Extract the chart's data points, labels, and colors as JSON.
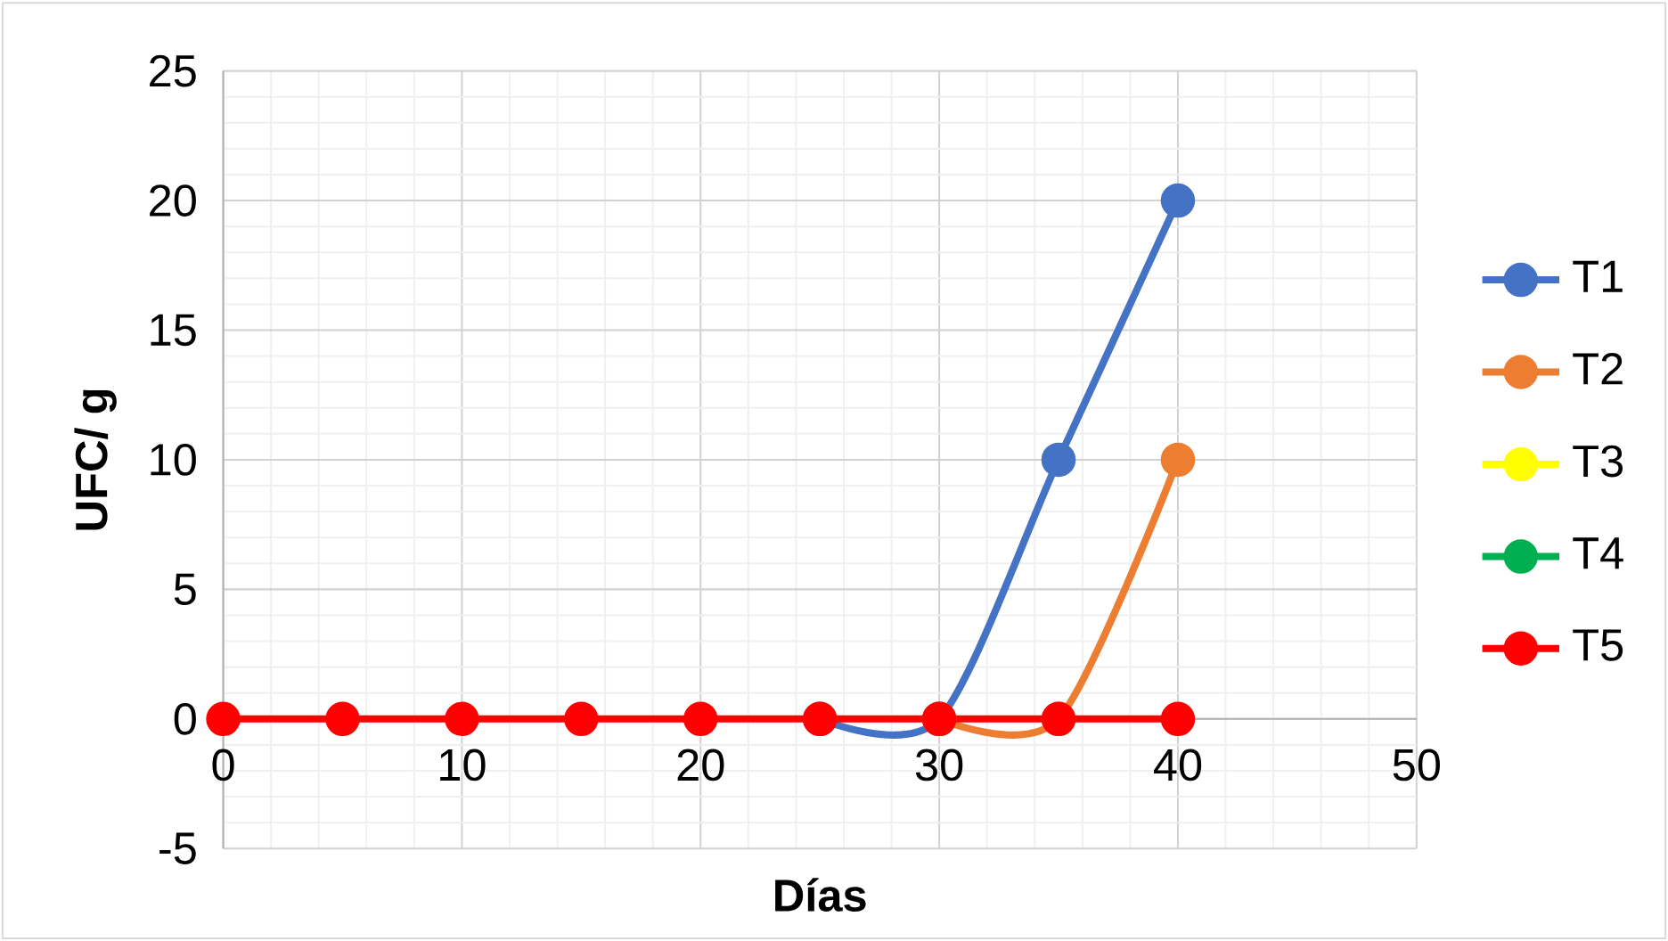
{
  "chart_data": {
    "type": "line",
    "xlabel": "Días",
    "ylabel": "UFC/ g",
    "x": [
      0,
      5,
      10,
      15,
      20,
      25,
      30,
      35,
      40
    ],
    "series": [
      {
        "name": "T1",
        "color": "#4472c4",
        "values": [
          null,
          null,
          null,
          null,
          null,
          0,
          0,
          10,
          20
        ]
      },
      {
        "name": "T2",
        "color": "#ed7d31",
        "values": [
          null,
          null,
          null,
          null,
          null,
          null,
          0,
          0,
          10
        ]
      },
      {
        "name": "T3",
        "color": "#ffff00",
        "values": [
          null,
          null,
          null,
          null,
          null,
          null,
          null,
          null,
          null
        ]
      },
      {
        "name": "T4",
        "color": "#00b050",
        "values": [
          null,
          null,
          null,
          null,
          null,
          null,
          null,
          null,
          null
        ]
      },
      {
        "name": "T5",
        "color": "#ff0000",
        "values": [
          0,
          0,
          0,
          0,
          0,
          0,
          0,
          0,
          0
        ]
      }
    ],
    "xlim": [
      0,
      50
    ],
    "xticks": [
      0,
      10,
      20,
      30,
      40,
      50
    ],
    "ylim": [
      -5,
      25
    ],
    "yticks": [
      -5,
      0,
      5,
      10,
      15,
      20,
      25
    ],
    "grid": true,
    "legend": "right",
    "marker": "circle",
    "line_style": "solid"
  }
}
